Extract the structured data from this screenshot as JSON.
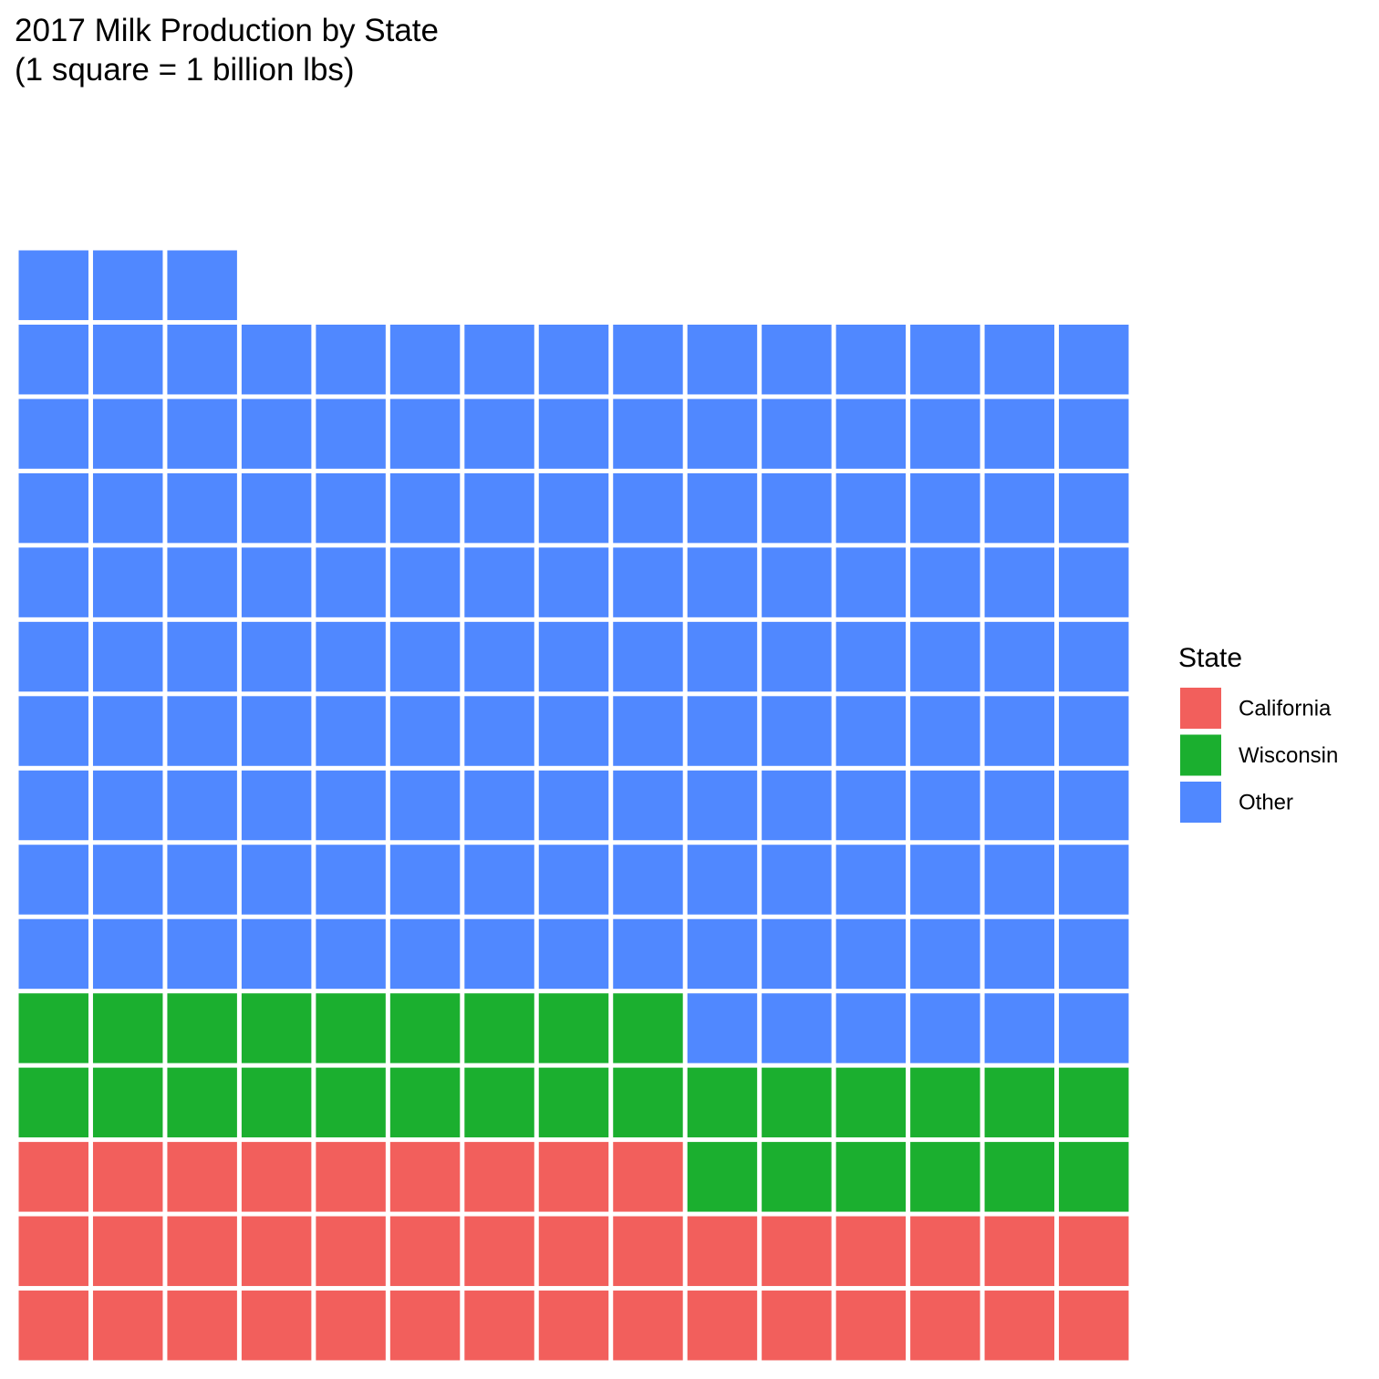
{
  "chart_data": {
    "type": "waffle",
    "title": "2017 Milk Production by State",
    "subtitle": "(1 square = 1 billion lbs)",
    "columns": 15,
    "categories": [
      "California",
      "Wisconsin",
      "Other"
    ],
    "values": [
      39,
      30,
      144
    ],
    "colors": [
      "#F25F5C",
      "#1BAF2F",
      "#5088FF"
    ],
    "legend": {
      "title": "State",
      "position": "right"
    },
    "grid": false
  }
}
